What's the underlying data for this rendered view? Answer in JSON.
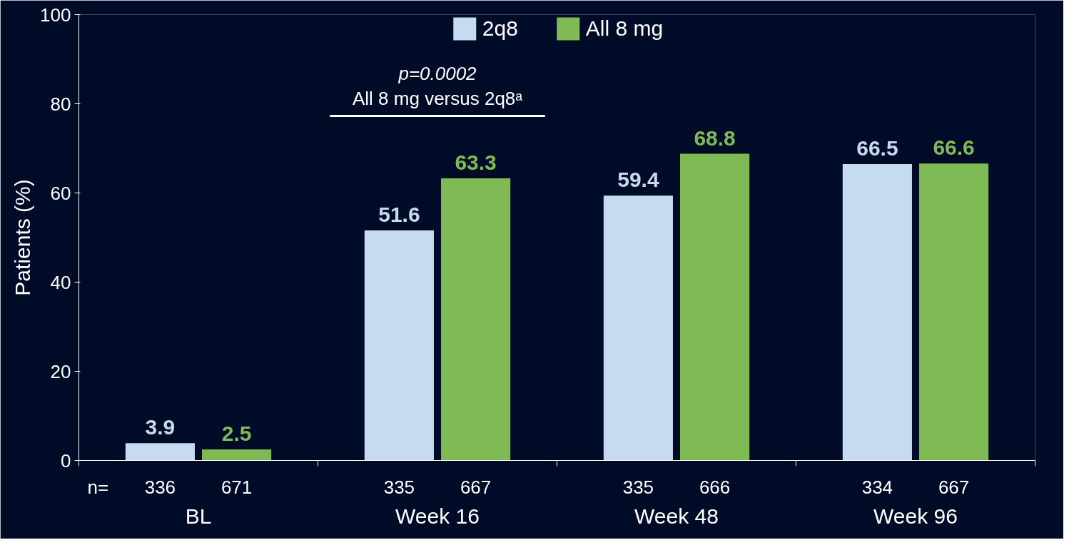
{
  "chart_data": {
    "type": "bar",
    "ylabel": "Patients (%)",
    "categories": [
      "BL",
      "Week 16",
      "Week 48",
      "Week 96"
    ],
    "series": [
      {
        "name": "2q8",
        "color": "#c6dbef",
        "values": [
          3.9,
          51.6,
          59.4,
          66.5
        ]
      },
      {
        "name": "All 8 mg",
        "color": "#80ba55",
        "values": [
          2.5,
          63.3,
          68.8,
          66.6
        ]
      }
    ],
    "ylim": [
      0,
      100
    ],
    "yticks": [
      0,
      20,
      40,
      60,
      80,
      100
    ],
    "grid": false,
    "legend": "top",
    "data_labels": true,
    "annotations": [
      "p=0.0002",
      "All 8 mg versus 2q8ᵃ",
      "n=",
      "336",
      "671",
      "335",
      "667",
      "335",
      "666",
      "334",
      "667"
    ]
  }
}
